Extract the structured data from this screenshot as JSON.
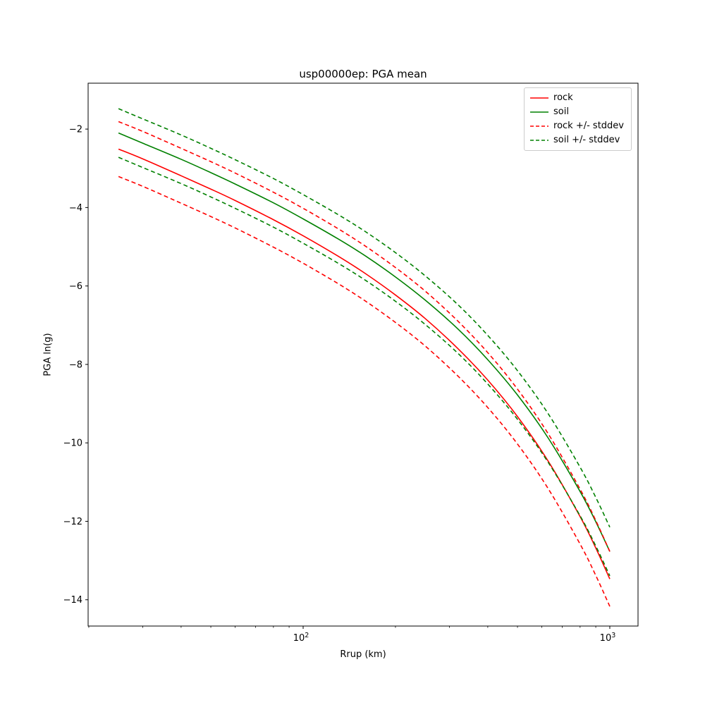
{
  "chart_data": {
    "type": "line",
    "title": "usp00000ep: PGA mean",
    "xlabel": "Rrup (km)",
    "ylabel": "PGA ln(g)",
    "xscale": "log",
    "yscale": "linear",
    "xlim": [
      19.9,
      1236
    ],
    "ylim": [
      -14.67,
      -0.83
    ],
    "grid": false,
    "legend_position": "upper right",
    "x_ticks": {
      "values": [
        100,
        1000
      ],
      "labels": [
        "10^2",
        "10^3"
      ]
    },
    "y_ticks": {
      "values": [
        -2,
        -4,
        -6,
        -8,
        -10,
        -12,
        -14
      ],
      "labels": [
        "−2",
        "−4",
        "−6",
        "−8",
        "−10",
        "−12",
        "−14"
      ]
    },
    "stddev": {
      "rock": 0.7,
      "soil": 0.62
    },
    "x": [
      25,
      30,
      40,
      50,
      60,
      80,
      100,
      130,
      160,
      200,
      250,
      320,
      400,
      500,
      630,
      800,
      900,
      1000
    ],
    "series": [
      {
        "name": "rock",
        "color": "#ff0000",
        "dash": "solid",
        "values": [
          -2.51,
          -2.76,
          -3.19,
          -3.53,
          -3.82,
          -4.31,
          -4.72,
          -5.24,
          -5.69,
          -6.23,
          -6.83,
          -7.6,
          -8.4,
          -9.33,
          -10.47,
          -11.88,
          -12.68,
          -13.47
        ]
      },
      {
        "name": "soil",
        "color": "#008000",
        "dash": "solid",
        "values": [
          -2.1,
          -2.36,
          -2.77,
          -3.11,
          -3.4,
          -3.88,
          -4.29,
          -4.8,
          -5.24,
          -5.77,
          -6.36,
          -7.1,
          -7.88,
          -8.78,
          -9.88,
          -11.24,
          -12.01,
          -12.77
        ]
      },
      {
        "name": "rock-plus-stddev",
        "color": "#ff0000",
        "dash": "dashed",
        "values": [
          -1.81,
          -2.06,
          -2.49,
          -2.83,
          -3.12,
          -3.61,
          -4.02,
          -4.54,
          -4.99,
          -5.53,
          -6.13,
          -6.9,
          -7.7,
          -8.63,
          -9.77,
          -11.18,
          -11.98,
          -12.77
        ]
      },
      {
        "name": "rock-minus-stddev",
        "color": "#ff0000",
        "dash": "dashed",
        "values": [
          -3.21,
          -3.46,
          -3.89,
          -4.23,
          -4.52,
          -5.01,
          -5.42,
          -5.94,
          -6.39,
          -6.93,
          -7.53,
          -8.3,
          -9.1,
          -10.03,
          -11.17,
          -12.58,
          -13.38,
          -14.17
        ]
      },
      {
        "name": "soil-plus-stddev",
        "color": "#008000",
        "dash": "dashed",
        "values": [
          -1.48,
          -1.74,
          -2.15,
          -2.49,
          -2.78,
          -3.26,
          -3.67,
          -4.18,
          -4.62,
          -5.15,
          -5.74,
          -6.48,
          -7.26,
          -8.16,
          -9.26,
          -10.62,
          -11.39,
          -12.15
        ]
      },
      {
        "name": "soil-minus-stddev",
        "color": "#008000",
        "dash": "dashed",
        "values": [
          -2.72,
          -2.98,
          -3.39,
          -3.73,
          -4.02,
          -4.5,
          -4.91,
          -5.42,
          -5.86,
          -6.39,
          -6.98,
          -7.72,
          -8.5,
          -9.4,
          -10.5,
          -11.86,
          -12.63,
          -13.39
        ]
      }
    ],
    "legend": [
      {
        "label": "rock",
        "color": "#ff0000",
        "dash": "solid"
      },
      {
        "label": "soil",
        "color": "#008000",
        "dash": "solid"
      },
      {
        "label": "rock +/- stddev",
        "color": "#ff0000",
        "dash": "dashed"
      },
      {
        "label": "soil +/- stddev",
        "color": "#008000",
        "dash": "dashed"
      }
    ]
  }
}
